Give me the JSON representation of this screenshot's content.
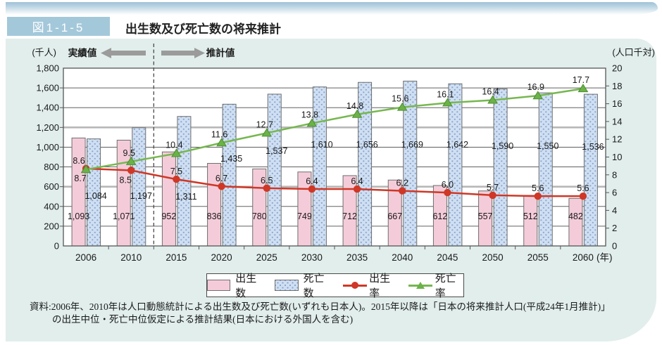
{
  "figure": {
    "badge": "図1-1-5",
    "title": "出生数及び死亡数の将来推計"
  },
  "chart_data": {
    "type": "bar+line combo",
    "categories": [
      "2006",
      "2010",
      "2015",
      "2020",
      "2025",
      "2030",
      "2035",
      "2040",
      "2045",
      "2050",
      "2055",
      "2060"
    ],
    "x_unit_label": "(年)",
    "left_axis": {
      "label": "(千人)",
      "min": 0,
      "max": 1800,
      "step": 200
    },
    "right_axis": {
      "label": "(人口千対)",
      "min": 0,
      "max": 20,
      "step": 2
    },
    "annotations": {
      "actual_label": "実績値",
      "projected_label": "推計値",
      "divider_between": [
        "2010",
        "2015"
      ]
    },
    "series": [
      {
        "name": "出生数",
        "type": "bar",
        "axis": "left",
        "color": "#f4ccd9",
        "values": [
          1093,
          1071,
          952,
          836,
          780,
          749,
          712,
          667,
          612,
          557,
          512,
          482
        ]
      },
      {
        "name": "死亡数",
        "type": "bar",
        "axis": "left",
        "color": "#cfdff2",
        "values": [
          1084,
          1197,
          1311,
          1435,
          1537,
          1610,
          1656,
          1669,
          1642,
          1590,
          1550,
          1536
        ]
      },
      {
        "name": "出生率",
        "type": "line",
        "axis": "right",
        "color": "#cf3726",
        "marker": "circle",
        "values": [
          8.7,
          8.5,
          7.5,
          6.7,
          6.5,
          6.4,
          6.4,
          6.2,
          6.0,
          5.7,
          5.6,
          5.6
        ]
      },
      {
        "name": "死亡率",
        "type": "line",
        "axis": "right",
        "color": "#76b74f",
        "marker": "triangle",
        "values": [
          8.6,
          9.5,
          10.4,
          11.6,
          12.7,
          13.8,
          14.8,
          15.6,
          16.1,
          16.4,
          16.9,
          17.7
        ]
      }
    ],
    "grid": "horizontal, every 200 (thick gray at 600 and 1200)",
    "legend_position": "bottom"
  },
  "legend": {
    "items": [
      "出生数",
      "死亡数",
      "出生率",
      "死亡率"
    ]
  },
  "source": {
    "line1": "資料:2006年、2010年は人口動態統計による出生数及び死亡数(いずれも日本人)。2015年以降は「日本の将来推計人口(平成24年1月推計)」",
    "line2": "の出生中位・死亡中位仮定による推計結果(日本における外国人を含む)"
  }
}
